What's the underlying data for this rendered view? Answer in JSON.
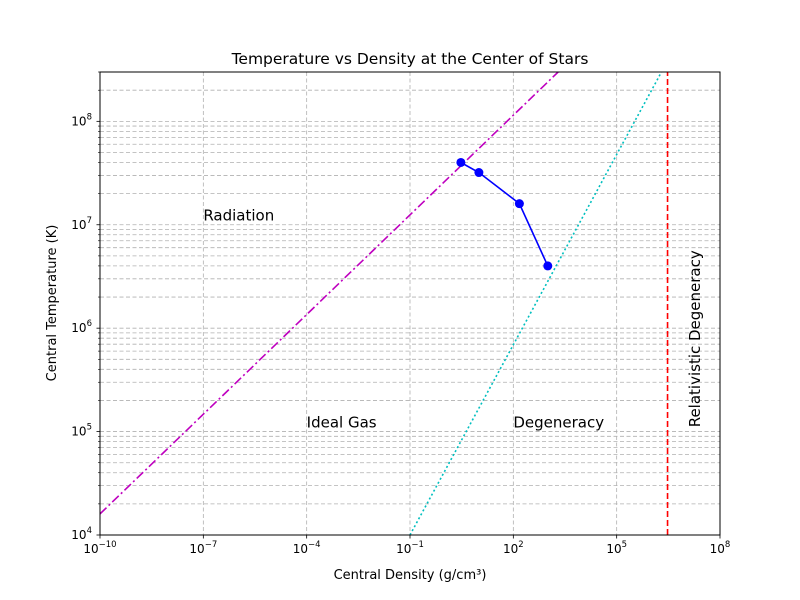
{
  "chart_data": {
    "type": "line",
    "title": "Temperature vs Density at the Center of Stars",
    "xlabel": "Central Density (g/cm³)",
    "ylabel": "Central Temperature (K)",
    "xscale": "log",
    "yscale": "log",
    "xlim": [
      1e-10,
      100000000.0
    ],
    "ylim": [
      10000.0,
      300000000.0
    ],
    "grid": "both-major-minor",
    "x_ticks": [
      {
        "value": 1e-10,
        "base": "10",
        "exp": "−10"
      },
      {
        "value": 1e-07,
        "base": "10",
        "exp": "−7"
      },
      {
        "value": 0.0001,
        "base": "10",
        "exp": "−4"
      },
      {
        "value": 0.1,
        "base": "10",
        "exp": "−1"
      },
      {
        "value": 100.0,
        "base": "10",
        "exp": "2"
      },
      {
        "value": 100000.0,
        "base": "10",
        "exp": "5"
      },
      {
        "value": 100000000.0,
        "base": "10",
        "exp": "8"
      }
    ],
    "y_ticks": [
      {
        "value": 10000.0,
        "base": "10",
        "exp": "4"
      },
      {
        "value": 100000.0,
        "base": "10",
        "exp": "5"
      },
      {
        "value": 1000000.0,
        "base": "10",
        "exp": "6"
      },
      {
        "value": 10000000.0,
        "base": "10",
        "exp": "7"
      },
      {
        "value": 100000000.0,
        "base": "10",
        "exp": "8"
      }
    ],
    "series": [
      {
        "style": "solid-markers",
        "color": "#0000ff",
        "x": [
          3,
          10,
          150,
          1000
        ],
        "y": [
          40000000,
          32000000,
          16000000,
          4000000
        ]
      }
    ],
    "boundary_lines": [
      {
        "style": "dashdot",
        "color": "#bf00bf",
        "x": [
          1e-10,
          2000.0
        ],
        "y": [
          16000,
          300000000.0
        ]
      },
      {
        "style": "dotted",
        "color": "#00bfbf",
        "x": [
          0.1,
          2000000.0
        ],
        "y": [
          10000.0,
          300000000.0
        ]
      },
      {
        "style": "dashed",
        "color": "#ff0000",
        "x": [
          3000000.0,
          3000000.0
        ],
        "y": [
          10000.0,
          300000000.0
        ]
      }
    ],
    "annotations": [
      {
        "text": "Radiation",
        "x": 1e-07,
        "y": 11000000.0,
        "rotate": 0
      },
      {
        "text": "Ideal Gas",
        "x": 0.0001,
        "y": 110000.0,
        "rotate": 0
      },
      {
        "text": "Degeneracy",
        "x": 100.0,
        "y": 110000.0,
        "rotate": 0
      },
      {
        "text": "Relativistic Degeneracy",
        "x": 20000000.0,
        "y": 110000.0,
        "rotate": -90
      }
    ]
  }
}
